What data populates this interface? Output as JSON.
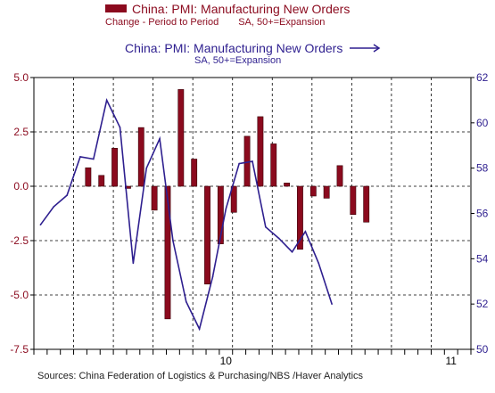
{
  "chart_data": {
    "type": "bar+line",
    "legend": {
      "bar_series": {
        "name": "China: PMI: Manufacturing New Orders",
        "sub_left": "Change - Period to Period",
        "sub_right": "SA, 50+=Expansion"
      },
      "line_series": {
        "name": "China: PMI: Manufacturing New Orders",
        "sub": "SA, 50+=Expansion"
      }
    },
    "x_axis": {
      "month_count": 33,
      "year_labels": [
        {
          "label": "10",
          "month_index": 14
        },
        {
          "label": "11",
          "month_index": 31
        }
      ]
    },
    "left_axis": {
      "min": -7.5,
      "max": 5.0,
      "ticks": [
        "5.0",
        "2.5",
        "0.0",
        "-2.5",
        "-5.0",
        "-7.5"
      ],
      "tick_values": [
        5.0,
        2.5,
        0.0,
        -2.5,
        -5.0,
        -7.5
      ]
    },
    "right_axis": {
      "min": 50,
      "max": 62,
      "ticks": [
        "62",
        "60",
        "58",
        "56",
        "54",
        "52",
        "50"
      ],
      "tick_values": [
        62,
        60,
        58,
        56,
        54,
        52,
        50
      ]
    },
    "grid": true,
    "bar_values": [
      null,
      null,
      0.85,
      0.5,
      1.75,
      -0.1,
      2.7,
      -1.1,
      -6.1,
      4.45,
      1.25,
      -4.5,
      -2.65,
      -1.2,
      2.3,
      3.2,
      1.95,
      0.15,
      -2.9,
      -0.45,
      -0.55,
      0.95,
      -1.3,
      -1.65
    ],
    "line_values": [
      55.5,
      56.3,
      56.8,
      58.5,
      58.4,
      61.0,
      59.8,
      53.8,
      58.0,
      59.3,
      54.8,
      52.1,
      50.9,
      53.2,
      56.2,
      58.2,
      58.3,
      55.4,
      54.9,
      54.3,
      55.2,
      53.8,
      52.0
    ],
    "line_start_index": 0,
    "bar_start_index": 0
  },
  "sources": "Sources:  China Federation of Logistics & Purchasing/NBS /Haver Analytics",
  "colors": {
    "bar": "#8b0a1e",
    "line": "#2e1f8f"
  }
}
